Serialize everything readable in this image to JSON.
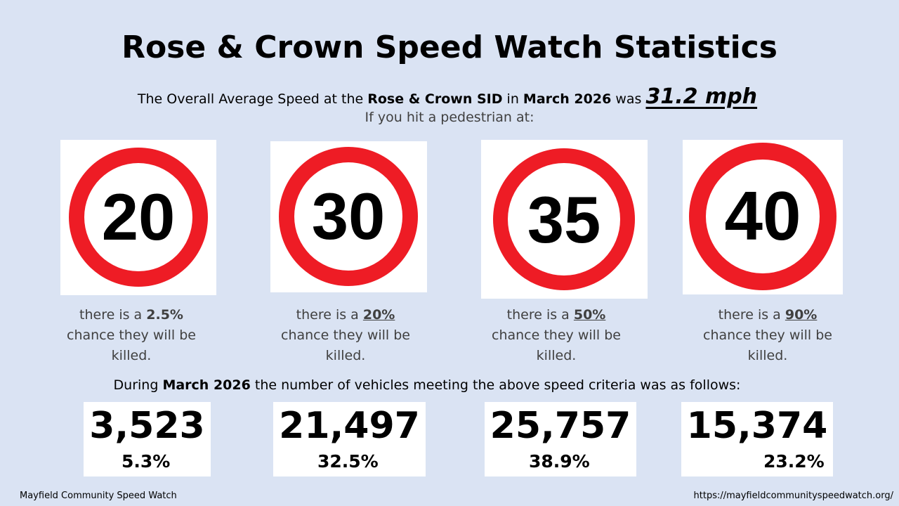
{
  "title": "Rose & Crown Speed Watch Statistics",
  "summary": {
    "prefix": "The Overall Average Speed at the ",
    "location": "Rose & Crown SID",
    "mid": " in ",
    "period": "March 2026",
    "suffix": " was ",
    "average_speed": "31.2 mph",
    "line2": "If you hit a pedestrian at:"
  },
  "colors": {
    "sign_red": "#ee1c25",
    "background": "#dae3f3"
  },
  "signs": [
    {
      "speed": "20",
      "caption_a": "there is a ",
      "chance": "2.5%",
      "caption_b": "chance they will be",
      "caption_c": "killed."
    },
    {
      "speed": "30",
      "caption_a": "there is a ",
      "chance": "20%",
      "caption_b": "chance they will be",
      "caption_c": "killed."
    },
    {
      "speed": "35",
      "caption_a": "there is a ",
      "chance": "50%",
      "caption_b": "chance they will be",
      "caption_c": "killed."
    },
    {
      "speed": "40",
      "caption_a": "there is a ",
      "chance": "90%",
      "caption_b": "chance they will be",
      "caption_c": "killed."
    }
  ],
  "during": {
    "prefix": "During ",
    "period": "March 2026",
    "suffix": " the number of vehicles meeting the above speed criteria was as follows:"
  },
  "counts": [
    {
      "count": "3,523",
      "percent": "5.3%"
    },
    {
      "count": "21,497",
      "percent": "32.5%"
    },
    {
      "count": "25,757",
      "percent": "38.9%"
    },
    {
      "count": "15,374",
      "percent": "23.2%"
    }
  ],
  "footer": {
    "left": "Mayfield Community Speed Watch",
    "right": "https://mayfieldcommunityspeedwatch.org/"
  }
}
